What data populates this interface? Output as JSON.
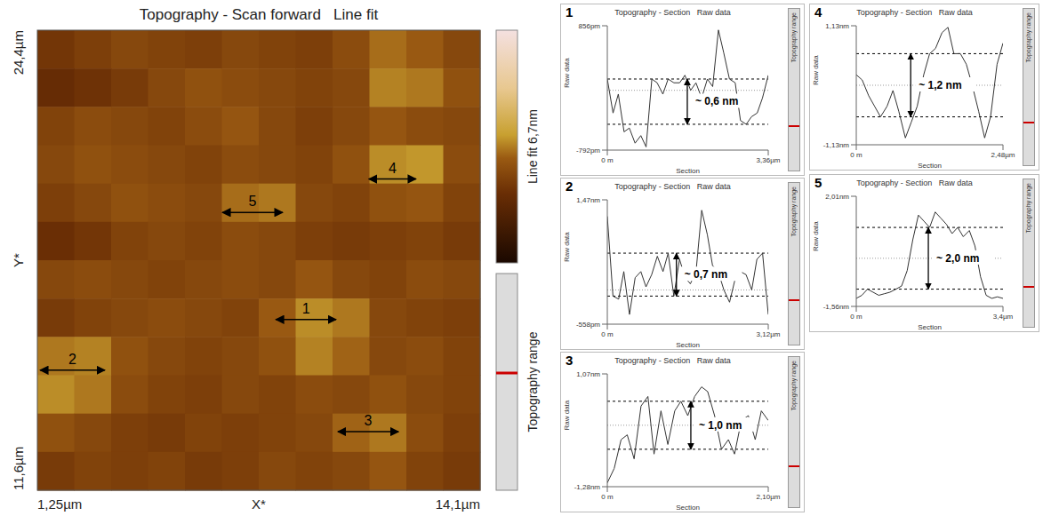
{
  "chart_data": [
    {
      "type": "heatmap",
      "title": "Topography - Scan forward   Line fit",
      "x_label": "X*",
      "y_label": "Y*",
      "xlim": [
        1.25,
        14.1
      ],
      "ylim": [
        11.6,
        24.4
      ],
      "xticks": [
        {
          "value": 1.25,
          "label": "1,25µm"
        },
        {
          "value": 14.1,
          "label": "14,1µm"
        }
      ],
      "yticks": [
        {
          "value": 11.6,
          "label": "11,6µm"
        },
        {
          "value": 24.4,
          "label": "24,4µm"
        }
      ],
      "cells": [
        [
          2.2,
          2.4,
          2.6,
          2.5,
          2.4,
          2.6,
          2.5,
          2.4,
          2.7,
          3.2,
          3.0,
          2.6
        ],
        [
          1.9,
          2.1,
          2.3,
          2.6,
          2.8,
          2.7,
          2.6,
          2.5,
          2.6,
          3.4,
          3.3,
          2.8
        ],
        [
          2.5,
          2.7,
          2.6,
          2.5,
          2.7,
          2.9,
          2.6,
          2.4,
          2.6,
          2.9,
          2.7,
          2.6
        ],
        [
          2.6,
          2.8,
          2.7,
          2.6,
          2.5,
          2.7,
          2.6,
          2.5,
          2.8,
          3.5,
          3.6,
          2.7
        ],
        [
          2.4,
          2.6,
          2.8,
          2.7,
          2.6,
          3.2,
          3.3,
          2.6,
          2.5,
          2.8,
          2.9,
          2.5
        ],
        [
          2.0,
          2.2,
          2.5,
          2.6,
          2.5,
          2.7,
          2.6,
          2.4,
          2.3,
          2.4,
          2.5,
          2.3
        ],
        [
          2.6,
          2.7,
          2.6,
          2.5,
          2.6,
          2.7,
          2.6,
          2.9,
          2.6,
          2.5,
          2.7,
          2.6
        ],
        [
          2.3,
          2.5,
          2.6,
          2.7,
          2.6,
          2.5,
          3.0,
          3.5,
          3.3,
          2.6,
          2.5,
          2.4
        ],
        [
          3.3,
          3.4,
          2.8,
          2.6,
          2.5,
          2.6,
          2.8,
          3.4,
          3.1,
          2.6,
          2.7,
          2.5
        ],
        [
          3.5,
          3.3,
          2.7,
          2.5,
          2.4,
          2.6,
          2.5,
          2.7,
          2.6,
          2.8,
          2.6,
          2.5
        ],
        [
          2.8,
          2.6,
          2.4,
          2.3,
          2.5,
          2.4,
          2.5,
          2.6,
          3.1,
          3.3,
          2.7,
          2.4
        ],
        [
          2.3,
          2.5,
          2.4,
          2.5,
          2.3,
          2.4,
          2.6,
          2.5,
          2.6,
          2.9,
          2.5,
          2.3
        ]
      ],
      "colorbar": {
        "range": [
          0,
          6.7
        ],
        "label": "Line fit 6,7nm"
      },
      "range_bar_label": "Topography range",
      "arrows": [
        {
          "label": "1",
          "x": [
            8.17,
            9.92
          ],
          "y": 16.35
        },
        {
          "label": "2",
          "x": [
            1.33,
            3.21
          ],
          "y": 14.94
        },
        {
          "label": "3",
          "x": [
            9.97,
            11.73
          ],
          "y": 13.23
        },
        {
          "label": "4",
          "x": [
            10.87,
            12.24
          ],
          "y": 20.26
        },
        {
          "label": "5",
          "x": [
            6.62,
            8.37
          ],
          "y": 19.33
        }
      ]
    },
    {
      "type": "line",
      "panel": "1",
      "title": "Topography - Section   Raw data",
      "x_label": "Section",
      "y_label": "Raw data",
      "side_label": "Topography range",
      "xlim": [
        0,
        3.36
      ],
      "ylim": [
        -0.792,
        0.856
      ],
      "xticks": [
        {
          "value": 0,
          "label": "0 m"
        },
        {
          "value": 3.36,
          "label": "3,36µm"
        }
      ],
      "yticks": [
        {
          "value": -0.792,
          "label": "-792pm"
        },
        {
          "value": 0.856,
          "label": "856pm"
        }
      ],
      "x": [
        0,
        0.12,
        0.23,
        0.35,
        0.46,
        0.58,
        0.7,
        0.81,
        0.93,
        1.04,
        1.16,
        1.27,
        1.39,
        1.51,
        1.62,
        1.74,
        1.85,
        1.97,
        2.09,
        2.2,
        2.32,
        2.43,
        2.55,
        2.67,
        2.78,
        2.9,
        3.01,
        3.13,
        3.24,
        3.36
      ],
      "values": [
        0.15,
        -0.3,
        -0.05,
        -0.55,
        -0.5,
        -0.7,
        -0.6,
        -0.75,
        0.15,
        0.1,
        -0.05,
        0.15,
        0.1,
        0.1,
        0.2,
        0.0,
        0.1,
        -0.1,
        0.15,
        0.05,
        0.8,
        0.5,
        0.15,
        0.1,
        -0.4,
        -0.45,
        -0.35,
        -0.3,
        -0.1,
        0.2
      ],
      "baseline": 0,
      "levels": [
        0.15,
        -0.45
      ],
      "step": {
        "x": 1.67,
        "label": "~ 0,6 nm"
      }
    },
    {
      "type": "line",
      "panel": "2",
      "title": "Topography - Section   Raw data",
      "x_label": "Section",
      "y_label": "Raw data",
      "side_label": "Topography range",
      "xlim": [
        0,
        3.12
      ],
      "ylim": [
        -0.558,
        1.47
      ],
      "xticks": [
        {
          "value": 0,
          "label": "0 m"
        },
        {
          "value": 3.12,
          "label": "3,12µm"
        }
      ],
      "yticks": [
        {
          "value": -0.558,
          "label": "-558pm"
        },
        {
          "value": 1.47,
          "label": "1,47nm"
        }
      ],
      "x": [
        0,
        0.11,
        0.22,
        0.32,
        0.43,
        0.54,
        0.65,
        0.75,
        0.86,
        0.97,
        1.08,
        1.18,
        1.29,
        1.4,
        1.51,
        1.61,
        1.72,
        1.83,
        1.94,
        2.04,
        2.15,
        2.26,
        2.37,
        2.47,
        2.58,
        2.69,
        2.8,
        2.9,
        3.01,
        3.12
      ],
      "values": [
        1.2,
        -0.1,
        -0.15,
        0.3,
        -0.4,
        0.2,
        0.3,
        0.05,
        0.25,
        0.55,
        0.3,
        0.6,
        -0.1,
        0.5,
        0.2,
        0.1,
        0.3,
        1.3,
        0.9,
        0.4,
        0.3,
        0.0,
        -0.2,
        0.15,
        0.3,
        0.25,
        0.0,
        0.5,
        0.6,
        -0.4
      ],
      "baseline": 0,
      "levels": [
        0.6,
        -0.1
      ],
      "step": {
        "x": 1.34,
        "label": "~ 0,7 nm"
      }
    },
    {
      "type": "line",
      "panel": "3",
      "title": "Topography - Section   Raw data",
      "x_label": "Section",
      "y_label": "Raw data",
      "side_label": "Topography range",
      "xlim": [
        0,
        2.1
      ],
      "ylim": [
        -1.28,
        1.07
      ],
      "xticks": [
        {
          "value": 0,
          "label": "0 m"
        },
        {
          "value": 2.1,
          "label": "2,10µm"
        }
      ],
      "yticks": [
        {
          "value": -1.28,
          "label": "-1,28nm"
        },
        {
          "value": 1.07,
          "label": "1,07nm"
        }
      ],
      "x": [
        0,
        0.09,
        0.18,
        0.26,
        0.35,
        0.44,
        0.53,
        0.61,
        0.7,
        0.79,
        0.88,
        0.96,
        1.05,
        1.14,
        1.23,
        1.31,
        1.4,
        1.49,
        1.58,
        1.66,
        1.75,
        1.84,
        1.93,
        2.01,
        2.1
      ],
      "values": [
        -1.2,
        -0.9,
        -0.3,
        -0.2,
        -0.7,
        0.4,
        0.6,
        -0.6,
        0.3,
        -0.4,
        0.3,
        0.5,
        0.2,
        0.6,
        0.8,
        0.7,
        0.2,
        -0.5,
        -0.3,
        -0.6,
        0.1,
        0.2,
        -0.3,
        0.3,
        0.1
      ],
      "baseline": 0,
      "levels": [
        0.5,
        -0.5
      ],
      "step": {
        "x": 1.09,
        "label": "~ 1,0 nm"
      }
    },
    {
      "type": "line",
      "panel": "4",
      "title": "Topography - Section   Raw data",
      "x_label": "Section",
      "y_label": "Raw data",
      "side_label": "Topography range",
      "xlim": [
        0,
        2.48
      ],
      "ylim": [
        -1.13,
        1.13
      ],
      "xticks": [
        {
          "value": 0,
          "label": "0 m"
        },
        {
          "value": 2.48,
          "label": "2,48µm"
        }
      ],
      "yticks": [
        {
          "value": -1.13,
          "label": "-1,13nm"
        },
        {
          "value": 1.13,
          "label": "1,13nm"
        }
      ],
      "x": [
        0,
        0.1,
        0.21,
        0.31,
        0.41,
        0.52,
        0.62,
        0.72,
        0.83,
        0.93,
        1.03,
        1.14,
        1.24,
        1.34,
        1.45,
        1.55,
        1.65,
        1.76,
        1.86,
        1.96,
        2.07,
        2.17,
        2.27,
        2.38,
        2.48
      ],
      "values": [
        0.2,
        0.1,
        -0.2,
        -0.4,
        -0.6,
        -0.4,
        -0.1,
        -0.5,
        -1.0,
        -0.7,
        -0.4,
        0.2,
        0.6,
        0.7,
        1.0,
        1.1,
        0.6,
        0.6,
        0.4,
        0.0,
        -0.5,
        -1.0,
        -0.6,
        0.4,
        0.8
      ],
      "baseline": 0,
      "levels": [
        0.6,
        -0.6
      ],
      "step": {
        "x": 0.92,
        "label": "~ 1,2 nm"
      }
    },
    {
      "type": "line",
      "panel": "5",
      "title": "Topography - Section   Raw data",
      "x_label": "Section",
      "y_label": "Raw data",
      "side_label": "Topography range",
      "xlim": [
        0,
        3.4
      ],
      "ylim": [
        -1.56,
        2.01
      ],
      "xticks": [
        {
          "value": 0,
          "label": "0 m"
        },
        {
          "value": 3.4,
          "label": "3,4µm"
        }
      ],
      "yticks": [
        {
          "value": -1.56,
          "label": "-1,56nm"
        },
        {
          "value": 2.01,
          "label": "2,01nm"
        }
      ],
      "x": [
        0,
        0.13,
        0.26,
        0.39,
        0.52,
        0.65,
        0.78,
        0.92,
        1.05,
        1.18,
        1.31,
        1.44,
        1.57,
        1.7,
        1.83,
        1.96,
        2.09,
        2.22,
        2.35,
        2.48,
        2.62,
        2.75,
        2.88,
        3.01,
        3.14,
        3.27,
        3.4
      ],
      "values": [
        -1.3,
        -1.2,
        -1.0,
        -1.1,
        -1.2,
        -1.15,
        -1.1,
        -1.0,
        -0.9,
        -0.4,
        0.6,
        1.4,
        1.2,
        1.0,
        1.5,
        1.3,
        1.1,
        0.8,
        1.0,
        0.7,
        0.9,
        0.4,
        -0.6,
        -1.2,
        -1.3,
        -1.25,
        -1.3
      ],
      "baseline": 0,
      "levels": [
        1.0,
        -1.0
      ],
      "step": {
        "x": 1.67,
        "label": "~ 2,0 nm"
      }
    }
  ]
}
